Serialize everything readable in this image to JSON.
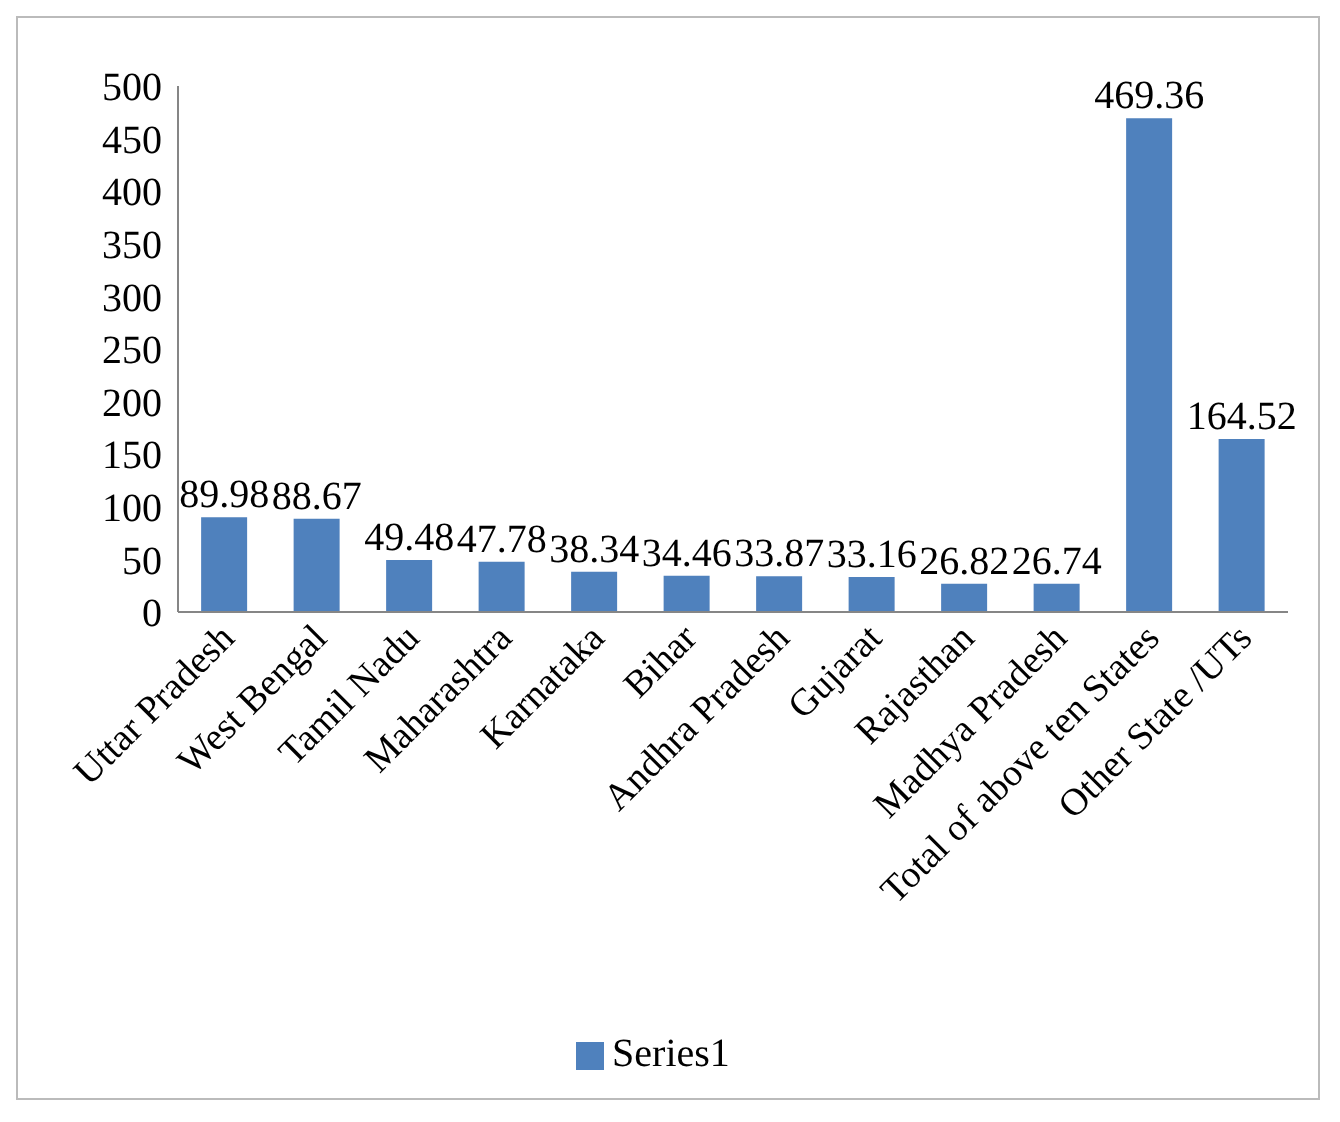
{
  "chart_data": {
    "type": "bar",
    "categories": [
      "Uttar Pradesh",
      "West Bengal",
      "Tamil Nadu",
      "Maharashtra",
      "Karnataka",
      "Bihar",
      "Andhra Pradesh",
      "Gujarat",
      "Rajasthan",
      "Madhya Pradesh",
      "Total of above ten States",
      "Other State /UTs"
    ],
    "series": [
      {
        "name": "Series1",
        "color": "#4f81bd",
        "values": [
          89.98,
          88.67,
          49.48,
          47.78,
          38.34,
          34.46,
          33.87,
          33.16,
          26.82,
          26.74,
          469.36,
          164.52
        ]
      }
    ],
    "ylim": [
      0,
      500
    ],
    "yticks": [
      0,
      50,
      100,
      150,
      200,
      250,
      300,
      350,
      400,
      450,
      500
    ],
    "data_labels": true,
    "grid": false,
    "legend": "bottom"
  }
}
